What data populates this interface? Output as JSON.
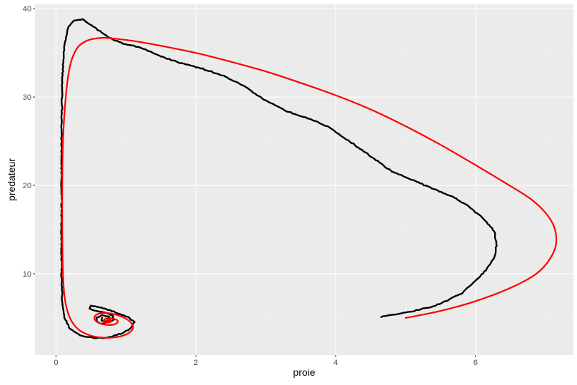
{
  "chart_data": {
    "type": "line",
    "title": "",
    "xlabel": "proie",
    "ylabel": "predateur",
    "xlim": [
      -0.3,
      7.4
    ],
    "ylim": [
      0.8,
      40.5
    ],
    "x_ticks": [
      0,
      2,
      4,
      6
    ],
    "y_ticks": [
      10,
      20,
      30,
      40
    ],
    "x_tick_labels": [
      "0",
      "2",
      "4",
      "6"
    ],
    "y_tick_labels": [
      "10",
      "20",
      "30",
      "40"
    ],
    "grid": true,
    "legend": "none",
    "colors": {
      "panel_background": "#ebebeb",
      "grid_major": "#ffffff",
      "grid_minor": "#f5f5f5",
      "tick": "#333333",
      "simulated_trajectory": "#000000",
      "deterministic_trajectory": "#ff0000"
    },
    "series": [
      {
        "color": "#000000",
        "style": "noisy",
        "points": [
          [
            4.65,
            5.1
          ],
          [
            5.0,
            5.6
          ],
          [
            5.4,
            6.3
          ],
          [
            5.6,
            7.0
          ],
          [
            5.8,
            7.8
          ],
          [
            6.0,
            9.2
          ],
          [
            6.15,
            10.4
          ],
          [
            6.28,
            12.0
          ],
          [
            6.3,
            13.2
          ],
          [
            6.27,
            14.8
          ],
          [
            6.1,
            16.4
          ],
          [
            5.9,
            17.6
          ],
          [
            5.7,
            18.6
          ],
          [
            5.4,
            19.6
          ],
          [
            5.1,
            20.6
          ],
          [
            4.8,
            21.6
          ],
          [
            4.5,
            23.3
          ],
          [
            4.2,
            25.0
          ],
          [
            3.9,
            26.6
          ],
          [
            3.6,
            27.6
          ],
          [
            3.3,
            28.4
          ],
          [
            3.0,
            29.6
          ],
          [
            2.7,
            31.2
          ],
          [
            2.4,
            32.4
          ],
          [
            2.1,
            33.2
          ],
          [
            1.8,
            33.8
          ],
          [
            1.5,
            34.6
          ],
          [
            1.2,
            35.6
          ],
          [
            0.9,
            36.2
          ],
          [
            0.75,
            36.8
          ],
          [
            0.6,
            37.6
          ],
          [
            0.48,
            38.3
          ],
          [
            0.38,
            38.8
          ],
          [
            0.26,
            38.6
          ],
          [
            0.18,
            38.0
          ],
          [
            0.12,
            36.0
          ],
          [
            0.09,
            32.0
          ],
          [
            0.08,
            26.0
          ],
          [
            0.08,
            20.0
          ],
          [
            0.08,
            15.0
          ],
          [
            0.08,
            10.0
          ],
          [
            0.09,
            7.0
          ],
          [
            0.12,
            5.0
          ],
          [
            0.2,
            3.8
          ],
          [
            0.35,
            3.0
          ],
          [
            0.55,
            2.7
          ],
          [
            0.75,
            2.8
          ],
          [
            0.95,
            3.3
          ],
          [
            1.08,
            3.9
          ],
          [
            1.12,
            4.6
          ],
          [
            1.0,
            5.2
          ],
          [
            0.8,
            5.8
          ],
          [
            0.62,
            6.2
          ],
          [
            0.5,
            6.4
          ],
          [
            0.48,
            6.1
          ],
          [
            0.55,
            5.8
          ],
          [
            0.7,
            5.6
          ],
          [
            0.82,
            5.3
          ],
          [
            0.82,
            4.8
          ],
          [
            0.75,
            4.5
          ],
          [
            0.65,
            4.3
          ],
          [
            0.58,
            4.6
          ],
          [
            0.58,
            5.0
          ],
          [
            0.65,
            5.3
          ],
          [
            0.75,
            5.2
          ],
          [
            0.78,
            4.9
          ],
          [
            0.72,
            4.6
          ],
          [
            0.65,
            4.7
          ],
          [
            0.66,
            5.0
          ]
        ]
      },
      {
        "color": "#ff0000",
        "style": "smooth",
        "points": [
          [
            5.0,
            5.0
          ],
          [
            5.5,
            5.8
          ],
          [
            6.0,
            6.9
          ],
          [
            6.5,
            8.4
          ],
          [
            6.9,
            10.2
          ],
          [
            7.12,
            12.5
          ],
          [
            7.15,
            14.5
          ],
          [
            7.05,
            16.4
          ],
          [
            6.8,
            18.4
          ],
          [
            6.4,
            20.4
          ],
          [
            6.0,
            22.3
          ],
          [
            5.5,
            24.6
          ],
          [
            5.0,
            26.7
          ],
          [
            4.5,
            28.6
          ],
          [
            4.0,
            30.2
          ],
          [
            3.5,
            31.6
          ],
          [
            3.0,
            32.9
          ],
          [
            2.5,
            34.0
          ],
          [
            2.0,
            35.0
          ],
          [
            1.5,
            35.8
          ],
          [
            1.15,
            36.3
          ],
          [
            0.85,
            36.6
          ],
          [
            0.65,
            36.7
          ],
          [
            0.45,
            36.4
          ],
          [
            0.3,
            35.5
          ],
          [
            0.2,
            33.5
          ],
          [
            0.14,
            30.0
          ],
          [
            0.1,
            25.0
          ],
          [
            0.09,
            20.0
          ],
          [
            0.09,
            15.0
          ],
          [
            0.1,
            10.0
          ],
          [
            0.13,
            7.0
          ],
          [
            0.2,
            5.0
          ],
          [
            0.32,
            3.7
          ],
          [
            0.5,
            3.0
          ],
          [
            0.7,
            2.75
          ],
          [
            0.88,
            2.85
          ],
          [
            1.02,
            3.2
          ],
          [
            1.1,
            3.8
          ],
          [
            1.08,
            4.4
          ],
          [
            0.98,
            5.0
          ],
          [
            0.82,
            5.45
          ],
          [
            0.66,
            5.55
          ],
          [
            0.56,
            5.25
          ],
          [
            0.56,
            4.75
          ],
          [
            0.64,
            4.35
          ],
          [
            0.76,
            4.2
          ],
          [
            0.86,
            4.35
          ],
          [
            0.88,
            4.7
          ],
          [
            0.8,
            4.95
          ],
          [
            0.72,
            4.95
          ],
          [
            0.68,
            4.7
          ],
          [
            0.7,
            4.5
          ],
          [
            0.76,
            4.5
          ],
          [
            0.79,
            4.65
          ],
          [
            0.75,
            4.8
          ],
          [
            0.72,
            4.7
          ],
          [
            0.74,
            4.62
          ]
        ]
      }
    ]
  }
}
